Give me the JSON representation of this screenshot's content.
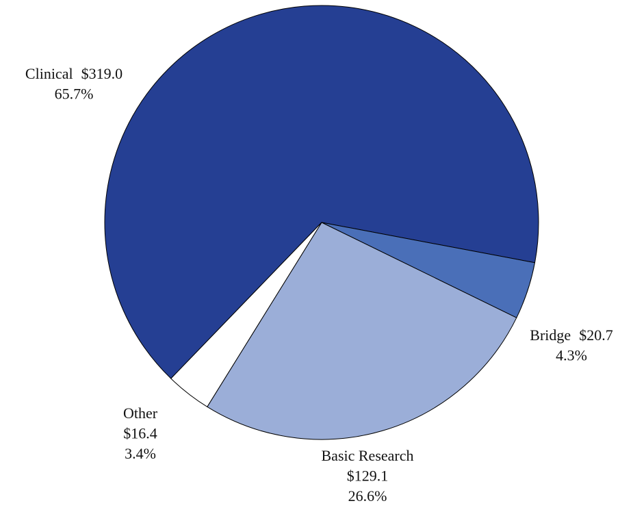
{
  "chart_data": {
    "type": "pie",
    "categories": [
      "Clinical",
      "Bridge",
      "Basic Research",
      "Other"
    ],
    "values": [
      319.0,
      20.7,
      129.1,
      16.4
    ],
    "value_labels": [
      "$319.0",
      "$20.7",
      "$129.1",
      "$16.4"
    ],
    "percents": [
      65.7,
      4.3,
      26.6,
      3.4
    ],
    "percent_labels": [
      "65.7%",
      "4.3%",
      "26.6%",
      "3.4%"
    ],
    "colors": [
      "#253f93",
      "#4a6fb8",
      "#9baed8",
      "#ffffff"
    ]
  }
}
